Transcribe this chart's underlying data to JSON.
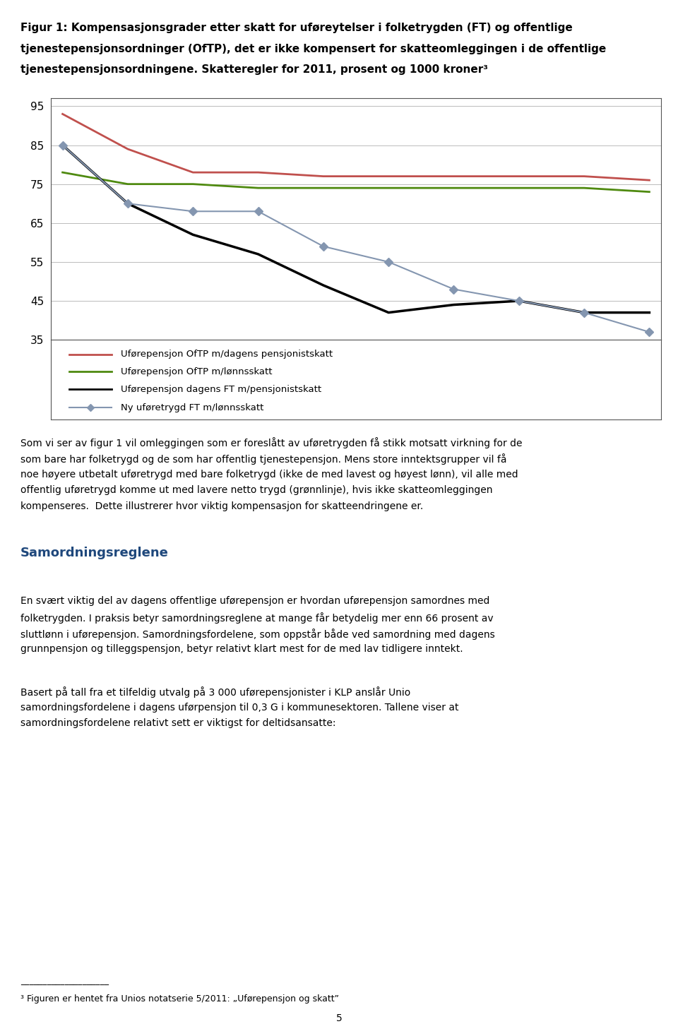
{
  "x": [
    234,
    312,
    390,
    468,
    546,
    624,
    702,
    780,
    858,
    936
  ],
  "series_order": [
    "oftp_pensjonistskatt",
    "oftp_lonnsskatt",
    "ft_pensjonistskatt",
    "ny_ft_lonnsskatt"
  ],
  "series": {
    "oftp_pensjonistskatt": {
      "label": "Uførepensjon OfTP m/dagens pensjonistskatt",
      "color": "#c0504d",
      "values": [
        93,
        84,
        78,
        78,
        77,
        77,
        77,
        77,
        77,
        76
      ],
      "marker": null,
      "linewidth": 2.0
    },
    "oftp_lonnsskatt": {
      "label": "Uførepensjon OfTP m/lønnsskatt",
      "color": "#4f8a10",
      "values": [
        78,
        75,
        75,
        74,
        74,
        74,
        74,
        74,
        74,
        73
      ],
      "marker": null,
      "linewidth": 2.0
    },
    "ft_pensjonistskatt": {
      "label": "Uførepensjon dagens FT m/pensjonistskatt",
      "color": "#000000",
      "values": [
        85,
        70,
        62,
        57,
        49,
        42,
        44,
        45,
        42,
        42
      ],
      "marker": null,
      "linewidth": 2.5
    },
    "ny_ft_lonnsskatt": {
      "label": "Ny uføretrygd FT m/lønnsskatt",
      "color": "#8496b0",
      "values": [
        85,
        70,
        68,
        68,
        59,
        55,
        48,
        45,
        42,
        37
      ],
      "marker": "D",
      "linewidth": 1.5,
      "markersize": 6
    }
  },
  "ylim": [
    35,
    97
  ],
  "yticks": [
    35,
    45,
    55,
    65,
    75,
    85,
    95
  ],
  "xticks": [
    234,
    312,
    390,
    468,
    546,
    624,
    702,
    780,
    858,
    936
  ],
  "xlim": [
    220,
    950
  ],
  "background_color": "#ffffff",
  "plot_bg_color": "#ffffff",
  "grid_color": "#bbbbbb",
  "title_lines": [
    "Figur 1: Kompensasjonsgrader etter skatt for uføreytelser i folketrygden (FT) og offentlige",
    "tjenestepensjonsordninger (OfTP), det er ikke kompensert for skatteomleggingen i de offentlige",
    "tjenestepensjonsordningene. Skatteregler for 2011, prosent og 1000 kroner³"
  ],
  "body_text": [
    "Som vi ser av figur 1 vil omleggingen som er foreslått av uføretrygden få stikk motsatt virkning for de",
    "som bare har folketrygd og de som har offentlig tjenestepensjon. Mens store inntektsgrupper vil få",
    "noe høyere utbetalt uføretrygd med bare folketrygd (ikke de med lavest og høyest lønn), vil alle med",
    "offentlig uføretrygd komme ut med lavere netto trygd (grønnlinje), hvis ikke skatteomleggingen",
    "kompenseres.  Dette illustrerer hvor viktig kompensasjon for skatteendringene er."
  ],
  "section_heading": "Samordningsreglene",
  "body_text2": [
    "En svært viktig del av dagens offentlige uførepensjon er hvordan uførepensjon samordnes med",
    "folketrygden. I praksis betyr samordningsreglene at mange får betydelig mer enn 66 prosent av",
    "sluttlønn i uførepensjon. Samordningsfordelene, som oppstår både ved samordning med dagens",
    "grunnpensjon og tilleggspensjon, betyr relativt klart mest for de med lav tidligere inntekt."
  ],
  "body_text3": [
    "Basert på tall fra et tilfeldig utvalg på 3 000 uførepensjonister i KLP anslår Unio",
    "samordningsfordelene i dagens uførpensjon til 0,3 G i kommunesektoren. Tallene viser at",
    "samordningsfordelene relativt sett er viktigst for deltidsansatte:"
  ],
  "footnote": "³ Figuren er hentet fra Unios notatserie 5/2011: „Uførepensjon og skatt”",
  "page_number": "5",
  "legend_entries": [
    {
      "label": "Uførepensjon OfTP m/dagens pensjonistskatt",
      "color": "#c0504d",
      "marker": null
    },
    {
      "label": "Uførepensjon OfTP m/lønnsskatt",
      "color": "#4f8a10",
      "marker": null
    },
    {
      "label": "Uførepensjon dagens FT m/pensjonistskatt",
      "color": "#000000",
      "marker": null
    },
    {
      "label": "Ny uføretrygd FT m/lønnsskatt",
      "color": "#8496b0",
      "marker": "D"
    }
  ]
}
